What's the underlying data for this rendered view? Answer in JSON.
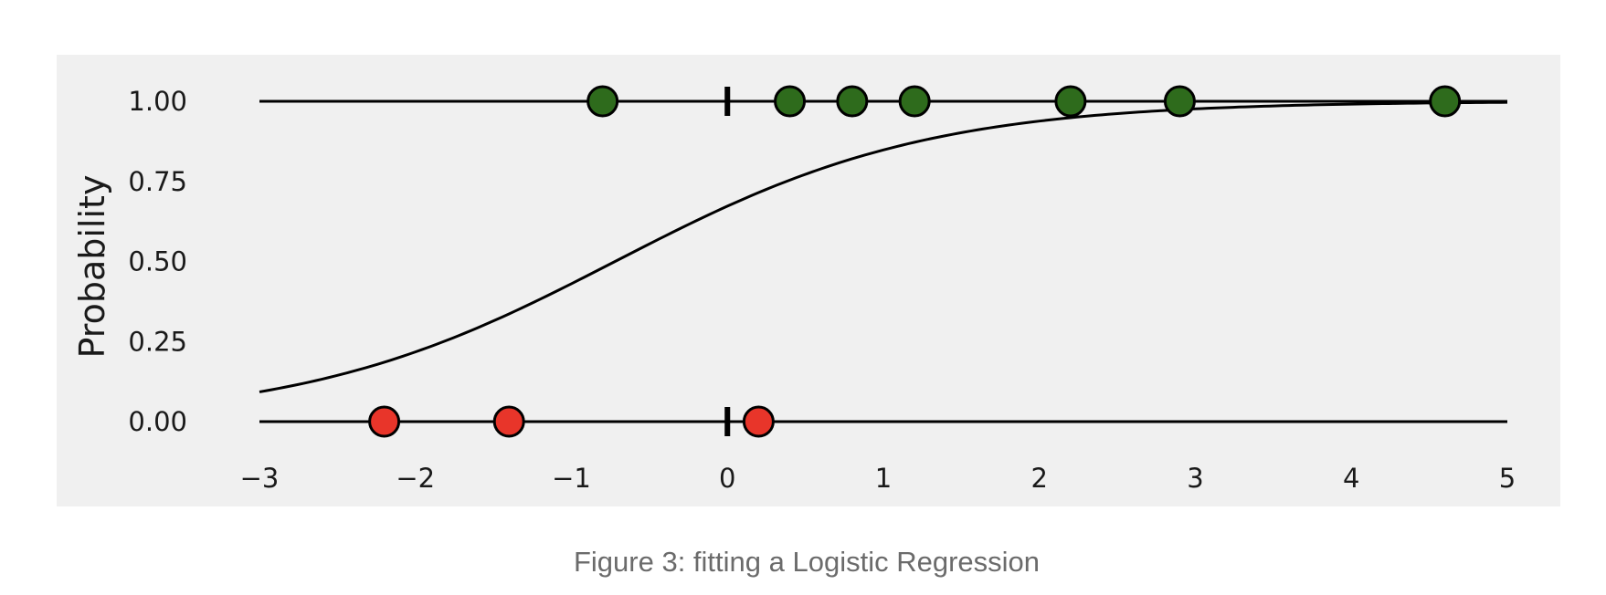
{
  "caption": "Figure 3: fitting a Logistic Regression",
  "chart_data": {
    "type": "scatter",
    "title": "",
    "xlabel": "",
    "ylabel": "Probability",
    "xlim": [
      -3,
      5
    ],
    "ylim": [
      -0.13,
      1.1
    ],
    "grid": false,
    "background": "#f0f0f0",
    "x_ticks": [
      -3,
      -2,
      -1,
      0,
      1,
      2,
      3,
      4,
      5
    ],
    "x_tick_labels": [
      "−3",
      "−2",
      "−1",
      "0",
      "1",
      "2",
      "3",
      "4",
      "5"
    ],
    "y_ticks": [
      0,
      0.25,
      0.5,
      0.75,
      1
    ],
    "y_tick_labels": [
      "0.00",
      "0.25",
      "0.50",
      "0.75",
      "1.00"
    ],
    "class_lines": [
      0,
      1
    ],
    "markers_at_x0": [
      0,
      1
    ],
    "series": [
      {
        "kind": "points",
        "class": 1,
        "color": "#2e6b1c",
        "x": [
          -0.8,
          0.4,
          0.8,
          1.2,
          2.2,
          2.9,
          4.6
        ],
        "y": [
          1,
          1,
          1,
          1,
          1,
          1,
          1
        ]
      },
      {
        "kind": "points",
        "class": 0,
        "color": "#e8352a",
        "x": [
          -2.2,
          -1.4,
          0.2
        ],
        "y": [
          0,
          0,
          0
        ]
      },
      {
        "kind": "sigmoid",
        "color": "#000000",
        "intercept": 0.72,
        "slope": 1.0,
        "x_range": [
          -3,
          5
        ]
      }
    ]
  }
}
